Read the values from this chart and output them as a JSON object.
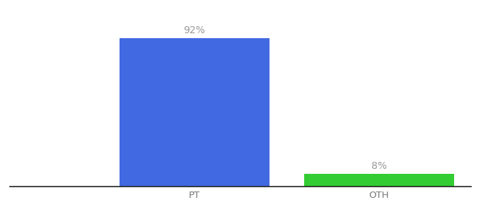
{
  "categories": [
    "PT",
    "OTH"
  ],
  "values": [
    92,
    8
  ],
  "bar_colors": [
    "#4169e1",
    "#33cc33"
  ],
  "label_texts": [
    "92%",
    "8%"
  ],
  "label_color": "#999999",
  "ylim": [
    0,
    105
  ],
  "background_color": "#ffffff",
  "label_fontsize": 10,
  "tick_fontsize": 9.5,
  "tick_color": "#777777",
  "bar_width": 0.65,
  "xlim": [
    -0.3,
    1.7
  ],
  "x_positions": [
    0.5,
    1.3
  ]
}
